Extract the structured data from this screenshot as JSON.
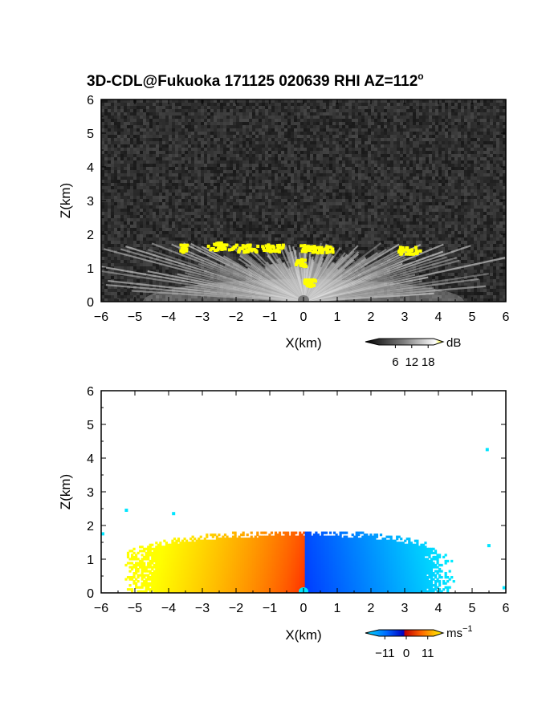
{
  "title": "3D-CDL@Fukuoka 171125 020639 RHI AZ=112",
  "title_superscript": "o",
  "chart_data": [
    {
      "type": "heatmap",
      "quantity": "backscatter intensity",
      "xlabel": "X(km)",
      "ylabel": "Z(km)",
      "xlim": [
        -6,
        6
      ],
      "ylim": [
        0,
        6
      ],
      "xticks": [
        "-6",
        "-5",
        "-4",
        "-3",
        "-2",
        "-1",
        "0",
        "1",
        "2",
        "3",
        "4",
        "5",
        "6"
      ],
      "yticks": [
        "0",
        "1",
        "2",
        "3",
        "4",
        "5",
        "6"
      ],
      "background": "noise, dark gray (~#2a2a2a)",
      "echo_top_km": 1.75,
      "echo_fan_color": "light gray to white",
      "high_value_color": "#ffff00",
      "colorbar": {
        "unit": "dB",
        "tick_labels": [
          "6",
          "12",
          "18"
        ],
        "range": [
          0,
          20
        ],
        "colors": [
          "#000000",
          "#808080",
          "#ffffff",
          "#ffff00"
        ]
      }
    },
    {
      "type": "heatmap",
      "quantity": "Doppler velocity",
      "xlabel": "X(km)",
      "ylabel": "Z(km)",
      "xlim": [
        -6,
        6
      ],
      "ylim": [
        0,
        6
      ],
      "xticks": [
        "-6",
        "-5",
        "-4",
        "-3",
        "-2",
        "-1",
        "0",
        "1",
        "2",
        "3",
        "4",
        "5",
        "6"
      ],
      "yticks": [
        "0",
        "1",
        "2",
        "3",
        "4",
        "5",
        "6"
      ],
      "echo_top_km": 1.8,
      "negative_x_side": "positive velocity (red to yellow)",
      "positive_x_side": "negative velocity (blue to cyan)",
      "colorbar": {
        "unit_base": "ms",
        "unit_exponent": "−1",
        "tick_labels": [
          "−11",
          "0",
          "11"
        ],
        "range": [
          -14,
          14
        ],
        "colors": [
          "#00e5ff",
          "#0066ff",
          "#0000c0",
          "#c00000",
          "#ff6600",
          "#ffff00"
        ]
      }
    }
  ]
}
